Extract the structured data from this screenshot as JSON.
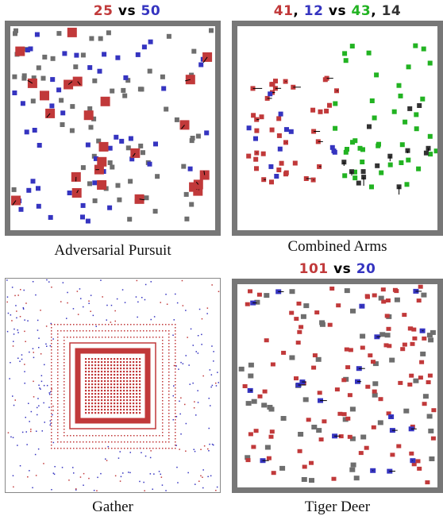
{
  "colors": {
    "red": "#c1393a",
    "blue": "#3534c0",
    "green": "#22b322",
    "gray": "#6e6e6e",
    "dark": "#333333",
    "border": "#777777"
  },
  "panels": {
    "adversarial_pursuit": {
      "caption": "Adversarial Pursuit",
      "score": {
        "left": "25",
        "sep": "vs",
        "right": "50",
        "left_color": "red",
        "right_color": "blue"
      }
    },
    "combined_arms": {
      "caption": "Combined Arms",
      "score": {
        "a": "41",
        "comma1": ",",
        "b": "12",
        "sep": "vs",
        "c": "43",
        "comma2": ",",
        "d": "14"
      }
    },
    "gather": {
      "caption": "Gather"
    },
    "tiger_deer": {
      "caption": "Tiger Deer",
      "score": {
        "left": "101",
        "sep": "vs",
        "right": "20"
      }
    }
  }
}
